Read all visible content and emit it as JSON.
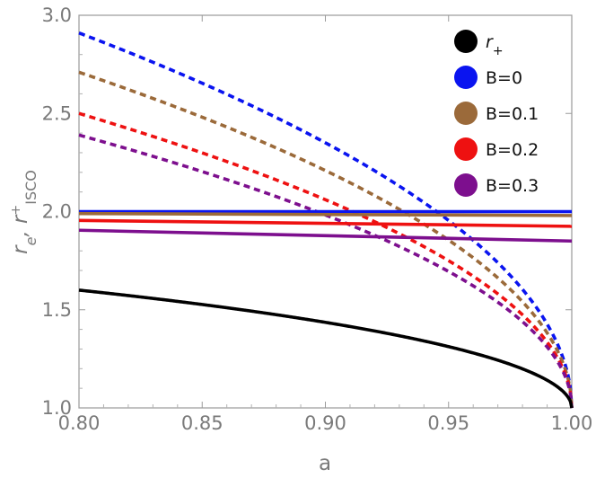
{
  "chart_data": {
    "type": "line",
    "title": "",
    "xlabel": "a",
    "ylabel_parts": {
      "main": "r",
      "sub1": "e",
      "sep": ", r",
      "sup": "+",
      "sub2": "ISCO"
    },
    "xlim": [
      0.8,
      1.0
    ],
    "ylim": [
      1.0,
      3.0
    ],
    "x_ticks": [
      0.8,
      0.85,
      0.9,
      0.95,
      1.0
    ],
    "x_tick_labels": [
      "0.80",
      "0.85",
      "0.90",
      "0.95",
      "1.00"
    ],
    "y_ticks": [
      1.0,
      1.5,
      2.0,
      2.5,
      3.0
    ],
    "y_tick_labels": [
      "1.0",
      "1.5",
      "2.0",
      "2.5",
      "3.0"
    ],
    "grid": false,
    "legend_position": "top-right",
    "legend": [
      {
        "label_main": "r",
        "label_sub": "+",
        "color": "#000000"
      },
      {
        "label": "B=0",
        "color": "#0a14f0"
      },
      {
        "label": "B=0.1",
        "color": "#9b6a3a"
      },
      {
        "label": "B=0.2",
        "color": "#ee1111"
      },
      {
        "label": "B=0.3",
        "color": "#7d0f8e"
      }
    ],
    "series": [
      {
        "name": "r_+ (horizon)",
        "style": "solid",
        "color": "#000000",
        "kind": "horizon"
      },
      {
        "name": "r_e B=0",
        "style": "solid",
        "color": "#0a14f0",
        "x": [
          0.8,
          1.0
        ],
        "y": [
          2.0,
          2.0
        ]
      },
      {
        "name": "r_e B=0.1",
        "style": "solid",
        "color": "#9b6a3a",
        "x": [
          0.8,
          1.0
        ],
        "y": [
          1.99,
          1.98
        ]
      },
      {
        "name": "r_e B=0.2",
        "style": "solid",
        "color": "#ee1111",
        "x": [
          0.8,
          1.0
        ],
        "y": [
          1.955,
          1.925
        ]
      },
      {
        "name": "r_e B=0.3",
        "style": "solid",
        "color": "#7d0f8e",
        "x": [
          0.8,
          1.0
        ],
        "y": [
          1.905,
          1.85
        ]
      },
      {
        "name": "r_ISCO B=0",
        "style": "dashed",
        "color": "#0a14f0",
        "endpoints": [
          [
            0.8,
            2.91
          ],
          [
            1.0,
            1.0
          ]
        ]
      },
      {
        "name": "r_ISCO B=0.1",
        "style": "dashed",
        "color": "#9b6a3a",
        "endpoints": [
          [
            0.8,
            2.71
          ],
          [
            1.0,
            1.0
          ]
        ]
      },
      {
        "name": "r_ISCO B=0.2",
        "style": "dashed",
        "color": "#ee1111",
        "endpoints": [
          [
            0.8,
            2.5
          ],
          [
            1.0,
            1.0
          ]
        ]
      },
      {
        "name": "r_ISCO B=0.3",
        "style": "dashed",
        "color": "#7d0f8e",
        "endpoints": [
          [
            0.8,
            2.39
          ],
          [
            1.0,
            1.0
          ]
        ]
      }
    ]
  }
}
